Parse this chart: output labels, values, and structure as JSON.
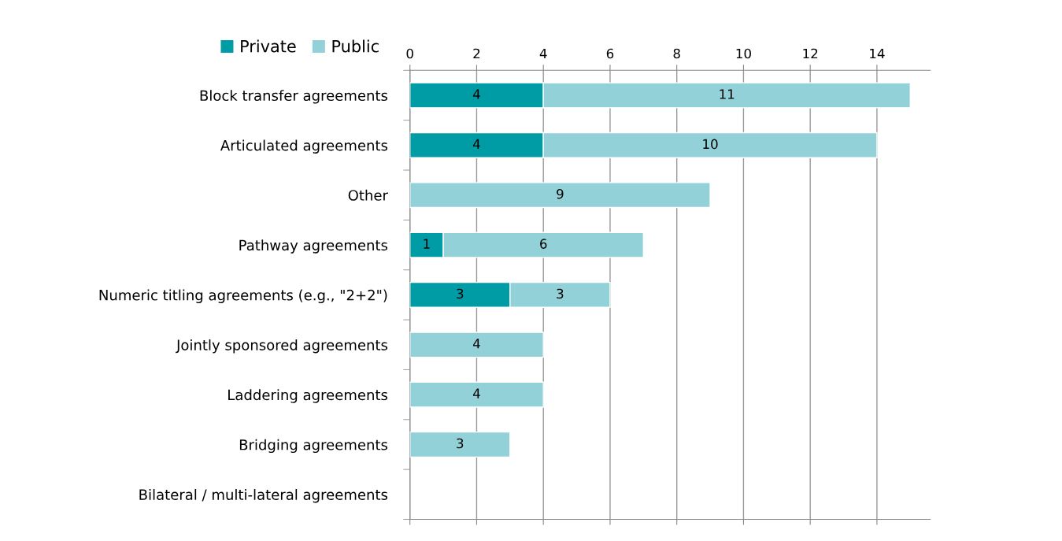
{
  "chart_data": {
    "type": "bar",
    "orientation": "horizontal",
    "stacked": true,
    "categories": [
      "Block transfer agreements",
      "Articulated agreements",
      "Other",
      "Pathway agreements",
      "Numeric titling agreements (e.g., \"2+2\")",
      "Jointly sponsored agreements",
      "Laddering agreements",
      "Bridging agreements",
      "Bilateral / multi-lateral agreements"
    ],
    "series": [
      {
        "name": "Private",
        "color": "#009ca6",
        "values": [
          4,
          4,
          null,
          1,
          3,
          null,
          null,
          null,
          null
        ]
      },
      {
        "name": "Public",
        "color": "#93d1d9",
        "values": [
          11,
          10,
          9,
          6,
          3,
          4,
          4,
          3,
          null
        ]
      }
    ],
    "xlim": [
      0,
      15.6
    ],
    "xticks": [
      0,
      2,
      4,
      6,
      8,
      10,
      12,
      14
    ],
    "grid": "x",
    "legend": "top left",
    "data_labels": true
  }
}
